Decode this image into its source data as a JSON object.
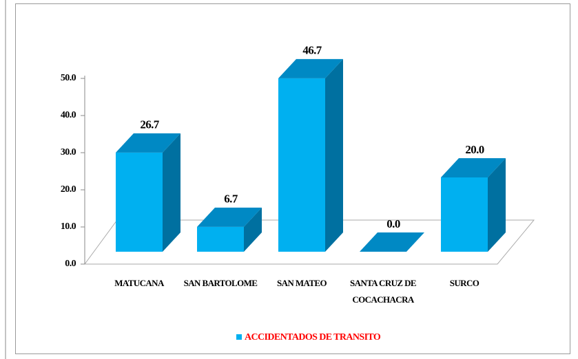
{
  "chart_data": {
    "type": "bar3d",
    "categories": [
      "MATUCANA",
      "SAN BARTOLOME",
      "SAN MATEO",
      "SANTA CRUZ DE COCACHACRA",
      "SURCO"
    ],
    "series": [
      {
        "name": "ACCIDENTADOS DE TRANSITO",
        "color": "#00b0f0",
        "values": [
          26.7,
          6.7,
          46.7,
          0,
          20
        ],
        "value_labels": [
          "26.7",
          "6.7",
          "46.7",
          "0.0",
          "20.0"
        ]
      }
    ],
    "ylim": [
      0,
      50
    ],
    "yticks": [
      {
        "value": 0,
        "label": "0.0"
      },
      {
        "value": 10,
        "label": "10.0"
      },
      {
        "value": 20,
        "label": "20.0"
      },
      {
        "value": 30,
        "label": "30.0"
      },
      {
        "value": 40,
        "label": "40.0"
      },
      {
        "value": 50,
        "label": "50.0"
      }
    ],
    "grid": false,
    "legend": "bottom"
  }
}
